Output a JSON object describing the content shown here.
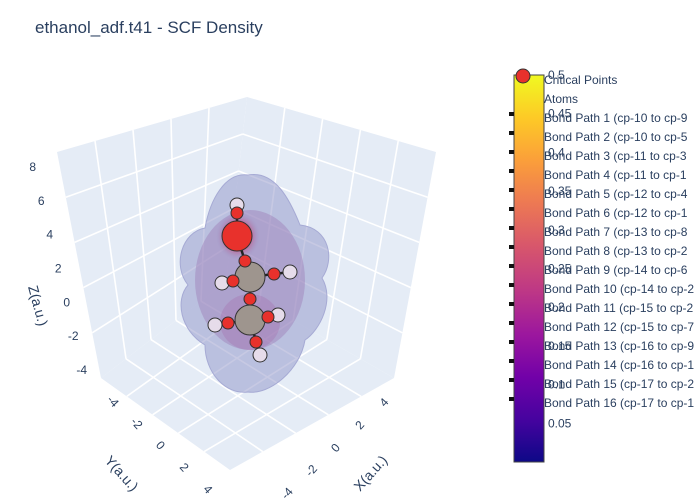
{
  "title": "ethanol_adf.t41 - SCF Density",
  "chart_data": {
    "type": "scatter3d",
    "title": "ethanol_adf.t41 - SCF Density",
    "axes": {
      "x": {
        "label": "X(a.u.)",
        "ticks": [
          "-4",
          "-2",
          "0",
          "2",
          "4"
        ]
      },
      "y": {
        "label": "Y(a.u.)",
        "ticks": [
          "-4",
          "-2",
          "0",
          "2",
          "4"
        ]
      },
      "z": {
        "label": "Z(a.u.)",
        "ticks": [
          "-4",
          "-2",
          "0",
          "2",
          "4",
          "6",
          "8"
        ]
      }
    },
    "colorbar": {
      "range": [
        0,
        0.5
      ],
      "ticks": [
        "0.05",
        "0.1",
        "0.15",
        "0.2",
        "0.25",
        "0.3",
        "0.35",
        "0.4",
        "0.45",
        "0.5"
      ]
    },
    "legend": [
      "Critical Points",
      "Atoms",
      "Bond Path 1 (cp-10 to cp-9",
      "Bond Path 2 (cp-10 to cp-5",
      "Bond Path 3 (cp-11 to cp-3",
      "Bond Path 4 (cp-11 to cp-1",
      "Bond Path 5 (cp-12 to cp-4",
      "Bond Path 6 (cp-12 to cp-1",
      "Bond Path 7 (cp-13 to cp-8",
      "Bond Path 8 (cp-13 to cp-2",
      "Bond Path 9 (cp-14 to cp-6",
      "Bond Path 10 (cp-14 to cp-2",
      "Bond Path 11 (cp-15 to cp-2",
      "Bond Path 12 (cp-15 to cp-7",
      "Bond Path 13 (cp-16 to cp-9",
      "Bond Path 14 (cp-16 to cp-1",
      "Bond Path 15 (cp-17 to cp-2",
      "Bond Path 16 (cp-17 to cp-1"
    ],
    "atoms": [
      {
        "element": "O",
        "color": "#e8312c"
      },
      {
        "element": "C",
        "color": "#9e958e"
      },
      {
        "element": "C",
        "color": "#9e958e"
      },
      {
        "element": "H",
        "color": "#e6dcea"
      },
      {
        "element": "H",
        "color": "#e6dcea"
      },
      {
        "element": "H",
        "color": "#e6dcea"
      },
      {
        "element": "H",
        "color": "#e6dcea"
      },
      {
        "element": "H",
        "color": "#e6dcea"
      },
      {
        "element": "H",
        "color": "#e6dcea"
      }
    ],
    "critical_point_color": "#e8312c",
    "isosurface_color": "#8f94c8",
    "colors": {
      "scene_bg": "#e5ecf6",
      "grid": "#ffffff",
      "text": "#2a3f5f"
    }
  }
}
